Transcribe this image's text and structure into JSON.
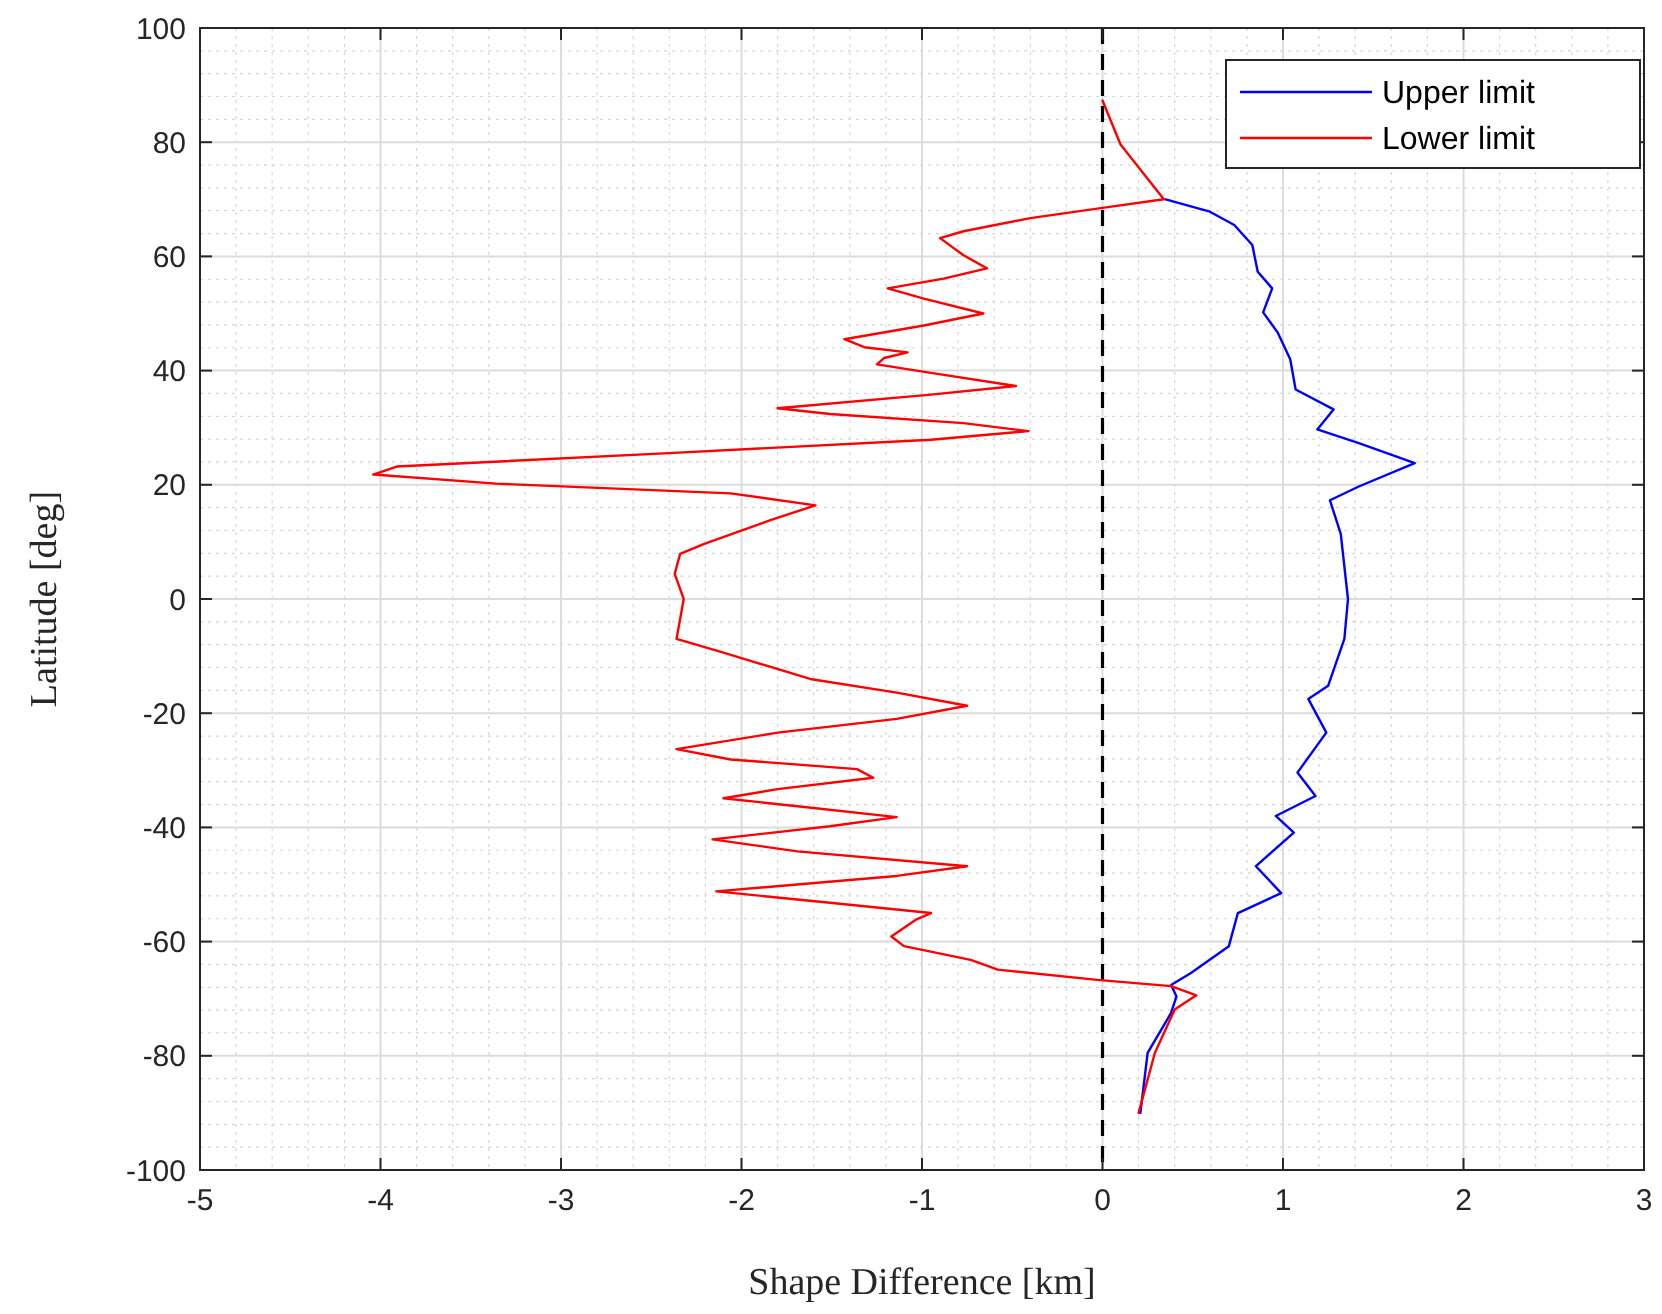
{
  "chart_data": {
    "type": "line",
    "xlabel": "Shape Difference [km]",
    "ylabel": "Latitude [deg]",
    "xlim": [
      -5,
      3
    ],
    "xticks": [
      -5,
      -4,
      -3,
      -2,
      -1,
      0,
      1,
      2,
      3
    ],
    "ylim": [
      -100,
      100
    ],
    "yticks": [
      -100,
      -80,
      -60,
      -40,
      -20,
      0,
      20,
      40,
      60,
      80,
      100
    ],
    "grid": true,
    "legend": "top right",
    "marker": "none",
    "line_style": "solid",
    "ref_lines": [
      {
        "axis": "x",
        "value": 0,
        "color": "#000000",
        "line_style": "dashed"
      }
    ],
    "series": [
      {
        "name": "Upper limit",
        "color": "#0000ff",
        "x": [
          0.35,
          0.59,
          0.73,
          0.83,
          0.86,
          0.94,
          0.89,
          0.97,
          1.04,
          1.07,
          1.28,
          1.19,
          1.42,
          1.73,
          1.42,
          1.26,
          1.32,
          1.36,
          1.34,
          1.25,
          1.14,
          1.24,
          1.08,
          1.18,
          0.96,
          1.06,
          0.85,
          0.99,
          0.75,
          0.7,
          0.49,
          0.38,
          0.41,
          0.38,
          0.25,
          0.21
        ],
        "values": [
          70,
          67.9,
          65.5,
          62,
          57.3,
          54.4,
          50.2,
          46.7,
          42,
          36.7,
          33.2,
          29.7,
          27.3,
          23.8,
          19.7,
          17.3,
          11.4,
          0,
          -7,
          -15.2,
          -17.5,
          -23.4,
          -30.4,
          -34.5,
          -38,
          -40.9,
          -46.8,
          -51.5,
          -55,
          -60.8,
          -65.5,
          -67.6,
          -69.6,
          -72.5,
          -79.5,
          -90
        ]
      },
      {
        "name": "Lower limit",
        "color": "#ff0000",
        "x": [
          0,
          0.1,
          0.34,
          0,
          -0.4,
          -0.77,
          -0.9,
          -0.77,
          -0.64,
          -0.88,
          -1.19,
          -0.99,
          -0.66,
          -0.99,
          -1.43,
          -1.32,
          -1.08,
          -1.21,
          -1.25,
          -0.95,
          -0.48,
          -0.95,
          -1.8,
          -1.51,
          -0.77,
          -0.41,
          -0.95,
          -2.43,
          -3.91,
          -4.04,
          -3.36,
          -2.06,
          -1.59,
          -1.84,
          -2.21,
          -2.34,
          -2.37,
          -2.32,
          -2.36,
          -2.1,
          -1.62,
          -1.14,
          -0.75,
          -1.14,
          -1.8,
          -2.36,
          -2.06,
          -1.36,
          -1.27,
          -1.8,
          -2.1,
          -1.69,
          -1.14,
          -1.51,
          -2.16,
          -1.69,
          -0.75,
          -1.14,
          -2.14,
          -1.51,
          -0.95,
          -1.03,
          -1.17,
          -1.1,
          -0.73,
          -0.58,
          -0.03,
          0.38,
          0.52,
          0.4,
          0.29,
          0.2
        ],
        "values": [
          87.3,
          79.6,
          70,
          68.5,
          66.7,
          64.4,
          63.2,
          60.2,
          57.9,
          56.1,
          54.4,
          52.6,
          50,
          47.9,
          45.5,
          44.1,
          43.2,
          42.2,
          41.1,
          39.6,
          37.3,
          35.8,
          33.4,
          32.4,
          30.8,
          29.4,
          27.9,
          25.5,
          23.2,
          21.8,
          20.2,
          18.5,
          16.4,
          13.8,
          9.6,
          7.9,
          4.4,
          0,
          -7,
          -9.4,
          -14,
          -16.4,
          -18.7,
          -21,
          -23.4,
          -26.3,
          -28.1,
          -29.8,
          -31.3,
          -33.3,
          -34.9,
          -36.3,
          -38.2,
          -39.8,
          -42.1,
          -44.2,
          -46.8,
          -48.5,
          -51.2,
          -53.2,
          -55,
          -56.1,
          -59.1,
          -60.8,
          -63.2,
          -64.9,
          -66.7,
          -67.8,
          -69.4,
          -71.9,
          -79.5,
          -90
        ]
      }
    ]
  }
}
